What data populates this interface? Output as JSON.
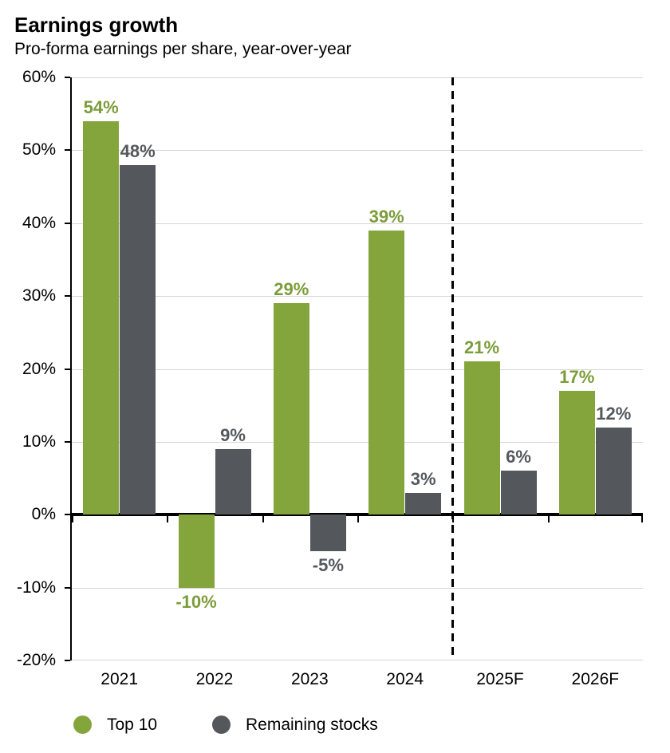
{
  "header": {
    "title": "Earnings growth",
    "subtitle": "Pro-forma earnings per share, year-over-year"
  },
  "chart_data": {
    "type": "bar",
    "title": "Earnings growth",
    "subtitle": "Pro-forma earnings per share, year-over-year",
    "categories": [
      "2021",
      "2022",
      "2023",
      "2024",
      "2025F",
      "2026F"
    ],
    "series": [
      {
        "name": "Top 10",
        "color": "#84A53C",
        "label_color": "#7C9C3A",
        "values": [
          54,
          -10,
          29,
          39,
          21,
          17
        ],
        "labels": [
          "54%",
          "-10%",
          "29%",
          "39%",
          "21%",
          "17%"
        ]
      },
      {
        "name": "Remaining stocks",
        "color": "#54575B",
        "label_color": "#55585C",
        "values": [
          48,
          9,
          -5,
          3,
          6,
          12
        ],
        "labels": [
          "48%",
          "9%",
          "-5%",
          "3%",
          "6%",
          "12%"
        ]
      }
    ],
    "xlabel": "",
    "ylabel": "",
    "ylim": [
      -20,
      60
    ],
    "y_tick_values": [
      60,
      50,
      40,
      30,
      20,
      10,
      0,
      -10,
      -20
    ],
    "y_tick_labels": [
      "60%",
      "50%",
      "40%",
      "30%",
      "20%",
      "10%",
      "0%",
      "-10%",
      "-20%"
    ],
    "grid": true,
    "forecast_divider_after_index": 3,
    "legend_position": "bottom",
    "axis_color": "#000000",
    "gridline_color": "#D6D6D6"
  }
}
